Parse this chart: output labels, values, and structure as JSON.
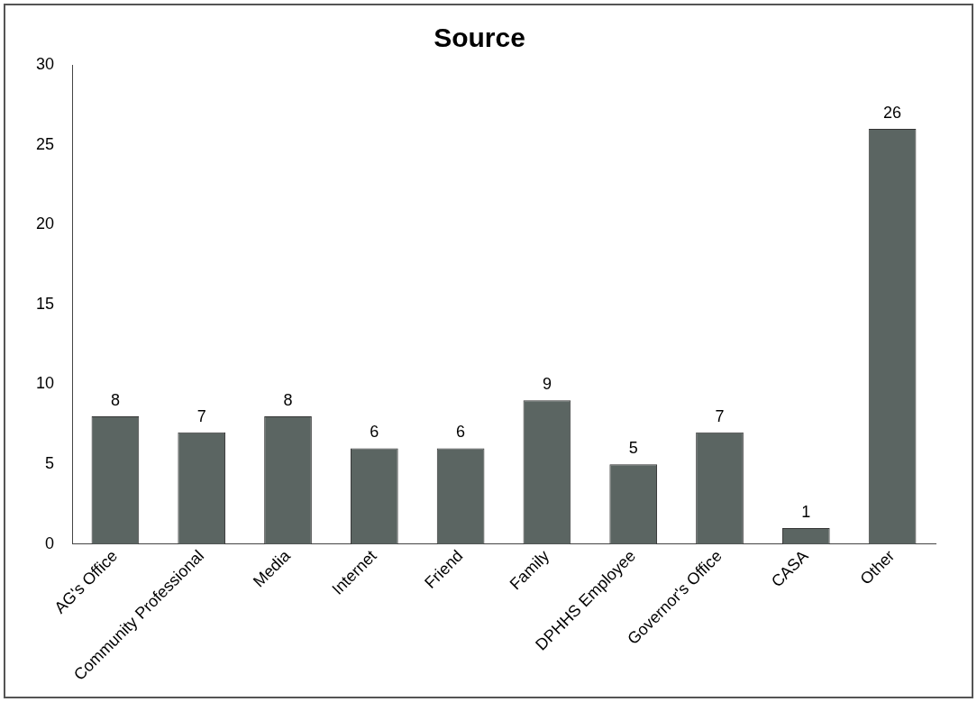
{
  "chart_data": {
    "type": "bar",
    "title": "Source",
    "categories": [
      "AG's Office",
      "Community Professional",
      "Media",
      "Internet",
      "Friend",
      "Family",
      "DPHHS Employee",
      "Governor's Office",
      "CASA",
      "Other"
    ],
    "values": [
      8,
      7,
      8,
      6,
      6,
      9,
      5,
      7,
      1,
      26
    ],
    "color": "#5b6562",
    "ylim": [
      0,
      30
    ],
    "yticks": [
      0,
      5,
      10,
      15,
      20,
      25,
      30
    ],
    "grid": false,
    "legend": false,
    "data_labels": true
  }
}
